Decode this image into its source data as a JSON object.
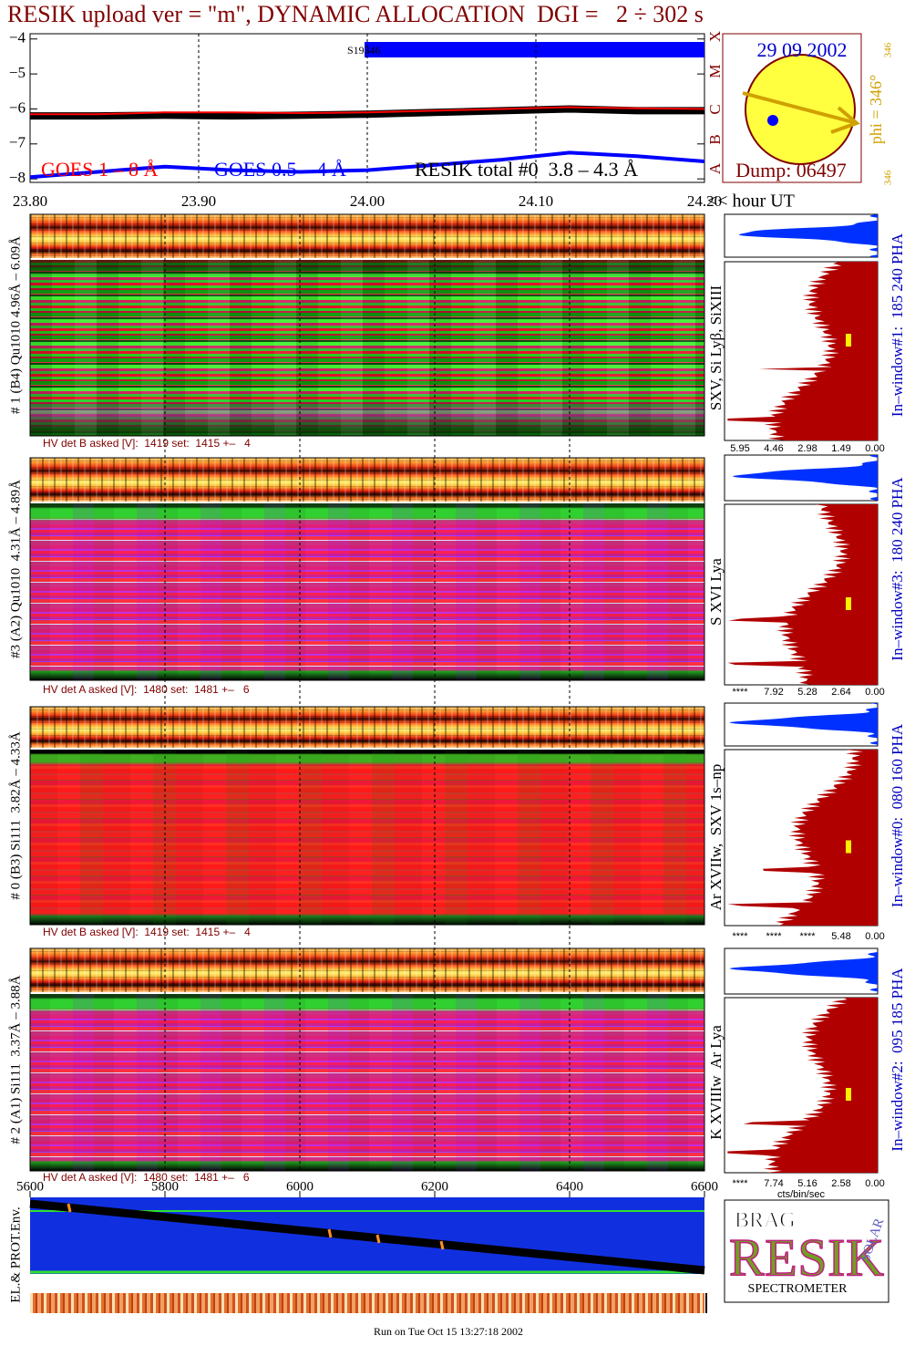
{
  "header": {
    "title": "RESIK upload ver = \"m\", DYNAMIC ALLOCATION  DGI =   2 ÷ 302 s"
  },
  "chart_data": {
    "type": "line",
    "x": [
      23.8,
      23.84,
      23.88,
      23.92,
      23.96,
      24.0,
      24.04,
      24.08,
      24.12,
      24.16,
      24.2
    ],
    "xlim": [
      23.8,
      24.2
    ],
    "xticks": [
      {
        "value": 23.8,
        "label": "23.80"
      },
      {
        "value": 23.9,
        "label": "23.90"
      },
      {
        "value": 24.0,
        "label": "24.00"
      },
      {
        "value": 24.1,
        "label": "24.10"
      },
      {
        "value": 24.2,
        "label": "24.20"
      }
    ],
    "x_label": "<< hour UT",
    "ylim": [
      -8.1,
      -3.85
    ],
    "yticks": [
      {
        "value": -4,
        "label": "−4"
      },
      {
        "value": -5,
        "label": "−5"
      },
      {
        "value": -6,
        "label": "−6"
      },
      {
        "value": -7,
        "label": "−7"
      },
      {
        "value": -8,
        "label": "−8"
      }
    ],
    "grid": true,
    "series": [
      {
        "name": "GOES 1 – 8 Å",
        "color": "#ff0000",
        "linewidth": 2,
        "values": [
          -6.15,
          -6.15,
          -6.1,
          -6.1,
          -6.12,
          -6.1,
          -6.05,
          -6.0,
          -5.95,
          -5.98,
          -6.0
        ]
      },
      {
        "name": "GOES 0.5 – 4 Å",
        "color": "#0000ff",
        "linewidth": 4,
        "values": [
          -7.95,
          -7.8,
          -7.65,
          -7.75,
          -7.8,
          -7.75,
          -7.6,
          -7.45,
          -7.25,
          -7.35,
          -7.5
        ]
      },
      {
        "name": "RESIK total #0  3.8 – 4.3 Å",
        "color": "#000000",
        "linewidth": 8,
        "values": [
          -6.2,
          -6.2,
          -6.18,
          -6.2,
          -6.18,
          -6.15,
          -6.1,
          -6.05,
          -6.0,
          -6.05,
          -6.05
        ]
      }
    ]
  },
  "bar_label": "S19346",
  "flare_classes": [
    "A",
    "B",
    "C",
    "M",
    "X"
  ],
  "sun": {
    "date": "29 09 2002",
    "dump": "Dump: 06497",
    "phi": "phi = 346°",
    "angle_top": "346",
    "angle_bottom": "346"
  },
  "panels": [
    {
      "label": "# 1 (B4) Qu1010 4.96Å – 6.09Å",
      "hv": "HV det B asked [V]:  1419 set:  1415 +–   4",
      "lines": "SXV, Si Lyβ, SiXIII",
      "window": "In–window#1:  185 240 PHA",
      "hist_ticks": [
        "5.95",
        "4.46",
        "2.98",
        "1.49",
        "0.00"
      ]
    },
    {
      "label": "#3 (A2) Qu1010  4.31Å – 4.89Å",
      "hv": "HV det A asked [V]:  1480 set:  1481 +–   6",
      "lines": "S XVI Lya",
      "window": "In–window#3:  180 240 PHA",
      "hist_ticks": [
        "****",
        "7.92",
        "5.28",
        "2.64",
        "0.00"
      ]
    },
    {
      "label": "# 0 (B3) Si111  3.82Å – 4.33Å",
      "hv": "HV det B asked [V]:  1419 set:  1415 +–   4",
      "lines": "Ar XVIIw,  SXV 1s–np",
      "window": "In–window#0:  080 160 PHA",
      "hist_ticks": [
        "****",
        "****",
        "****",
        "5.48",
        "0.00"
      ]
    },
    {
      "label": "# 2 (A1) Si111  3.37Å – 3.88Å",
      "hv": "HV det A asked [V]:  1480 set:  1481 +–   6",
      "lines": "K XVIIIw  Ar Lya",
      "window": "In–window#2:  095 185 PHA",
      "hist_ticks": [
        "****",
        "7.74",
        "5.16",
        "2.58",
        "0.00"
      ]
    }
  ],
  "hist_unit": "cts/bin/sec",
  "bottom_axis": {
    "ticks": [
      5600,
      5800,
      6000,
      6200,
      6400,
      6600
    ]
  },
  "env_label": "EL.& PROT.Env.",
  "logo": {
    "brag": "BRAG",
    "resik": "RESIK",
    "solar": "SOLAR",
    "spectrometer": "SPECTROMETER"
  },
  "footer": "Run on Tue Oct 15 13:27:18 2002"
}
